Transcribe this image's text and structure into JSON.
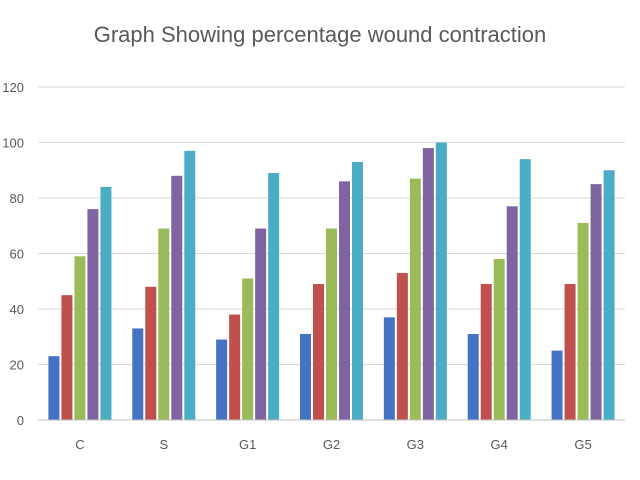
{
  "chart_data": {
    "type": "bar",
    "title": "Graph Showing percentage wound contraction",
    "xlabel": "",
    "ylabel": "",
    "categories": [
      "C",
      "S",
      "G1",
      "G2",
      "G3",
      "G4",
      "G5"
    ],
    "ylim": [
      0,
      120
    ],
    "yticks": [
      0,
      20,
      40,
      60,
      80,
      100,
      120
    ],
    "grid": true,
    "legend": "none",
    "series": [
      {
        "color": "#4472C4",
        "values": [
          23,
          33,
          29,
          31,
          37,
          31,
          25
        ]
      },
      {
        "color": "#C0504D",
        "values": [
          45,
          48,
          38,
          49,
          53,
          49,
          49
        ]
      },
      {
        "color": "#9BBB59",
        "values": [
          59,
          69,
          51,
          69,
          87,
          58,
          71
        ]
      },
      {
        "color": "#8064A2",
        "values": [
          76,
          88,
          69,
          86,
          98,
          77,
          85
        ]
      },
      {
        "color": "#4BACC6",
        "values": [
          84,
          97,
          89,
          93,
          100,
          94,
          90
        ]
      }
    ]
  }
}
